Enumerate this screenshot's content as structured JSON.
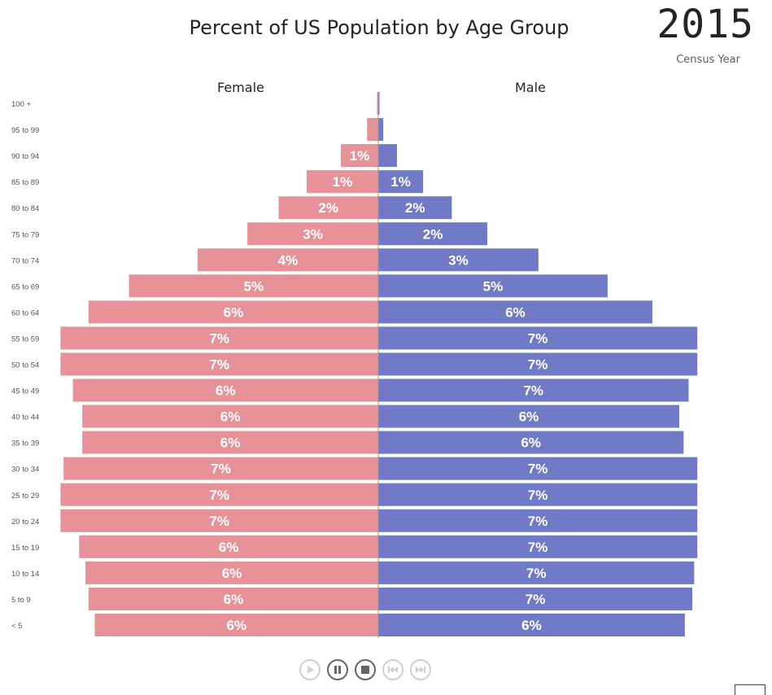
{
  "title": "Percent of US Population by Age Group",
  "year": "2015",
  "year_label": "Census Year",
  "chart_data": {
    "type": "bar",
    "orientation": "horizontal-diverging",
    "title": "Percent of US Population by Age Group",
    "unit": "%",
    "categories": [
      "100 +",
      "95 to 99",
      "90 to 94",
      "85 to 89",
      "80 to 84",
      "75 to 79",
      "70 to 74",
      "65 to 69",
      "60 to 64",
      "55 to 59",
      "50 to 54",
      "45 to 49",
      "40 to 44",
      "35 to 39",
      "30 to 34",
      "25 to 29",
      "20 to 24",
      "15 to 19",
      "10 to 14",
      "5 to 9",
      "< 5"
    ],
    "series": [
      {
        "name": "Female",
        "color": "#e79199",
        "values": [
          0.02,
          0.18,
          0.6,
          1.15,
          1.6,
          2.1,
          2.9,
          4.0,
          4.65,
          5.1,
          5.1,
          4.9,
          4.75,
          4.75,
          5.05,
          5.1,
          5.1,
          4.8,
          4.7,
          4.65,
          4.55
        ],
        "labels": [
          "",
          "",
          "1%",
          "1%",
          "2%",
          "3%",
          "4%",
          "5%",
          "6%",
          "7%",
          "7%",
          "6%",
          "6%",
          "6%",
          "7%",
          "7%",
          "7%",
          "6%",
          "6%",
          "6%",
          "6%"
        ]
      },
      {
        "name": "Male",
        "color": "#717bc5",
        "values": [
          0.02,
          0.08,
          0.3,
          0.72,
          1.18,
          1.75,
          2.57,
          3.68,
          4.4,
          5.12,
          5.12,
          4.98,
          4.83,
          4.9,
          5.12,
          5.12,
          5.12,
          5.12,
          5.07,
          5.04,
          4.92
        ],
        "labels": [
          "",
          "",
          "",
          "1%",
          "2%",
          "2%",
          "3%",
          "5%",
          "6%",
          "7%",
          "7%",
          "7%",
          "6%",
          "6%",
          "7%",
          "7%",
          "7%",
          "7%",
          "7%",
          "7%",
          "6%"
        ]
      }
    ],
    "legend": "column headers above each side"
  },
  "controls": {
    "play": "play-icon",
    "pause": "pause-icon",
    "stop": "stop-icon",
    "previous": "skip-back-icon",
    "next": "skip-forward-icon"
  }
}
